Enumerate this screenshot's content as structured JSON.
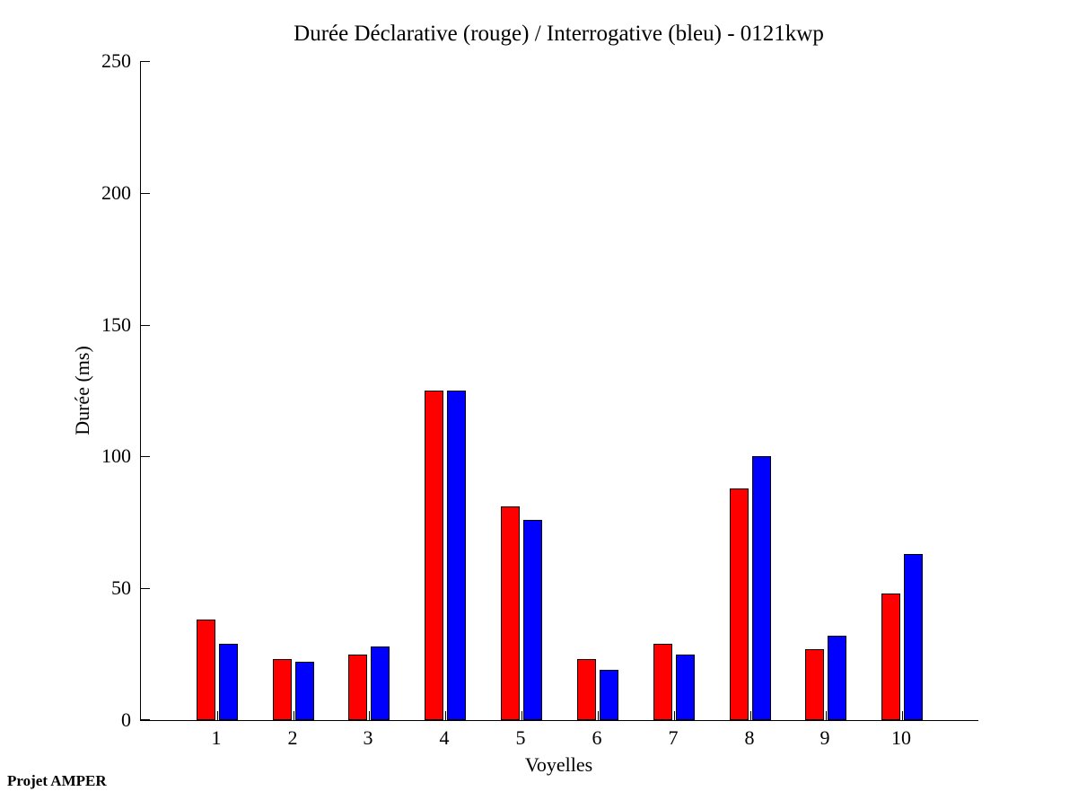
{
  "figure": {
    "background": "#ffffff",
    "axis_color": "#000000",
    "footer": "Projet AMPER"
  },
  "chart_data": {
    "type": "bar",
    "title": "Durée Déclarative (rouge) / Interrogative (bleu) - 0121kwp",
    "xlabel": "Voyelles",
    "ylabel": "Durée (ms)",
    "categories": [
      "1",
      "2",
      "3",
      "4",
      "5",
      "6",
      "7",
      "8",
      "9",
      "10"
    ],
    "series": [
      {
        "name": "Déclarative",
        "color": "#ff0000",
        "values": [
          38,
          23,
          25,
          125,
          81,
          23,
          29,
          88,
          27,
          48
        ]
      },
      {
        "name": "Interrogative",
        "color": "#0000ff",
        "values": [
          29,
          22,
          28,
          125,
          76,
          19,
          25,
          100,
          32,
          63
        ]
      }
    ],
    "ylim": [
      0,
      250
    ],
    "yticks": [
      0,
      50,
      100,
      150,
      200,
      250
    ],
    "xlim": [
      0,
      11
    ],
    "grid": false,
    "legend": "none"
  }
}
